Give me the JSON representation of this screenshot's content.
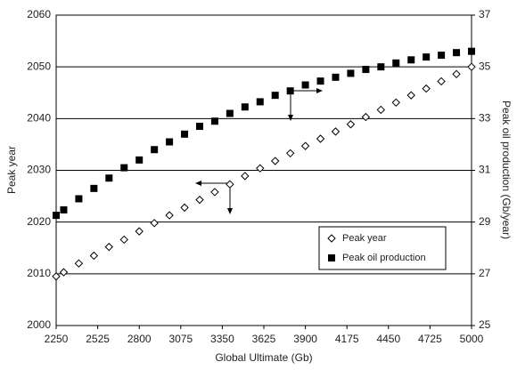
{
  "chart_data": {
    "type": "scatter",
    "x_label": "Global Ultimate (Gb)",
    "y_label": "Peak year",
    "y2_label": "Peak oil production (Gb/year)",
    "xlim": [
      2250,
      5000
    ],
    "xticks": [
      2250,
      2525,
      2800,
      3075,
      3350,
      3625,
      3900,
      4175,
      4450,
      4725,
      5000
    ],
    "ylim": [
      2000,
      2060
    ],
    "yticks": [
      2000,
      2010,
      2020,
      2030,
      2040,
      2050,
      2060
    ],
    "y2lim": [
      25,
      37
    ],
    "y2ticks": [
      25,
      27,
      29,
      31,
      33,
      35,
      37
    ],
    "grid": true,
    "legend": "lower right",
    "x": [
      2250,
      2300,
      2400,
      2500,
      2600,
      2700,
      2800,
      2900,
      3000,
      3100,
      3200,
      3300,
      3400,
      3500,
      3600,
      3700,
      3800,
      3900,
      4000,
      4100,
      4200,
      4300,
      4400,
      4500,
      4600,
      4700,
      4800,
      4900,
      5000
    ],
    "series": [
      {
        "name": "Peak year",
        "color": "#000000",
        "marker": "diamond",
        "values": [
          2009.5,
          2010.3,
          2012,
          2013.5,
          2015.2,
          2016.6,
          2018.2,
          2019.8,
          2021.3,
          2022.8,
          2024.3,
          2025.8,
          2027.3,
          2028.9,
          2030.4,
          2031.8,
          2033.3,
          2034.7,
          2036.1,
          2037.5,
          2038.9,
          2040.3,
          2041.7,
          2043.1,
          2044.5,
          2045.8,
          2047.2,
          2048.6,
          2050
        ]
      },
      {
        "name": "Peak oil production",
        "color": "#000000",
        "marker": "square",
        "axis": "y2",
        "values": [
          29.26,
          29.47,
          29.9,
          30.3,
          30.7,
          31.1,
          31.4,
          31.8,
          32.1,
          32.4,
          32.7,
          32.9,
          33.2,
          33.45,
          33.65,
          33.9,
          34.07,
          34.3,
          34.45,
          34.6,
          34.75,
          34.9,
          35.0,
          35.15,
          35.27,
          35.38,
          35.45,
          35.55,
          35.6
        ]
      }
    ]
  }
}
